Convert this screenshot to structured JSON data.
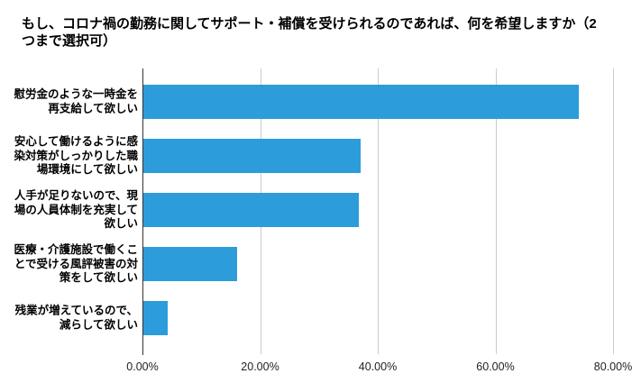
{
  "page": {
    "title": "もし、コロナ禍の勤務に関してサポート・補償を受けられるのであれば、何を希望しますか（2つまで選択可）"
  },
  "chart_data": {
    "type": "bar",
    "orientation": "horizontal",
    "title": "もし、コロナ禍の勤務に関してサポート・補償を受けられるのであれば、何を希望しますか（2つまで選択可）",
    "categories": [
      "慰労金のような一時金を再支給して欲しい",
      "安心して働けるように感染対策がしっかりした職場環境にして欲しい",
      "人手が足りないので、現場の人員体制を充実して欲しい",
      "医療・介護施設で働くことで受ける風評被害の対策をして欲しい",
      "残業が増えているので、減らして欲しい"
    ],
    "values": [
      74.0,
      36.9,
      36.6,
      15.9,
      4.1
    ],
    "value_unit": "%",
    "xlabel": "",
    "ylabel": "",
    "xlim": [
      0,
      80
    ],
    "x_ticks": [
      0,
      20,
      40,
      60,
      80
    ],
    "x_tick_labels": [
      "0.00%",
      "20.00%",
      "40.00%",
      "60.00%",
      "80.00%"
    ],
    "grid": true,
    "legend": false
  },
  "colors": {
    "background": "#ffffff",
    "bar": "#2d9cdb",
    "gridline": "#cccccc",
    "axis_line": "#333333",
    "title_text": "#000000",
    "label_text": "#000000",
    "tick_text": "#222222"
  }
}
